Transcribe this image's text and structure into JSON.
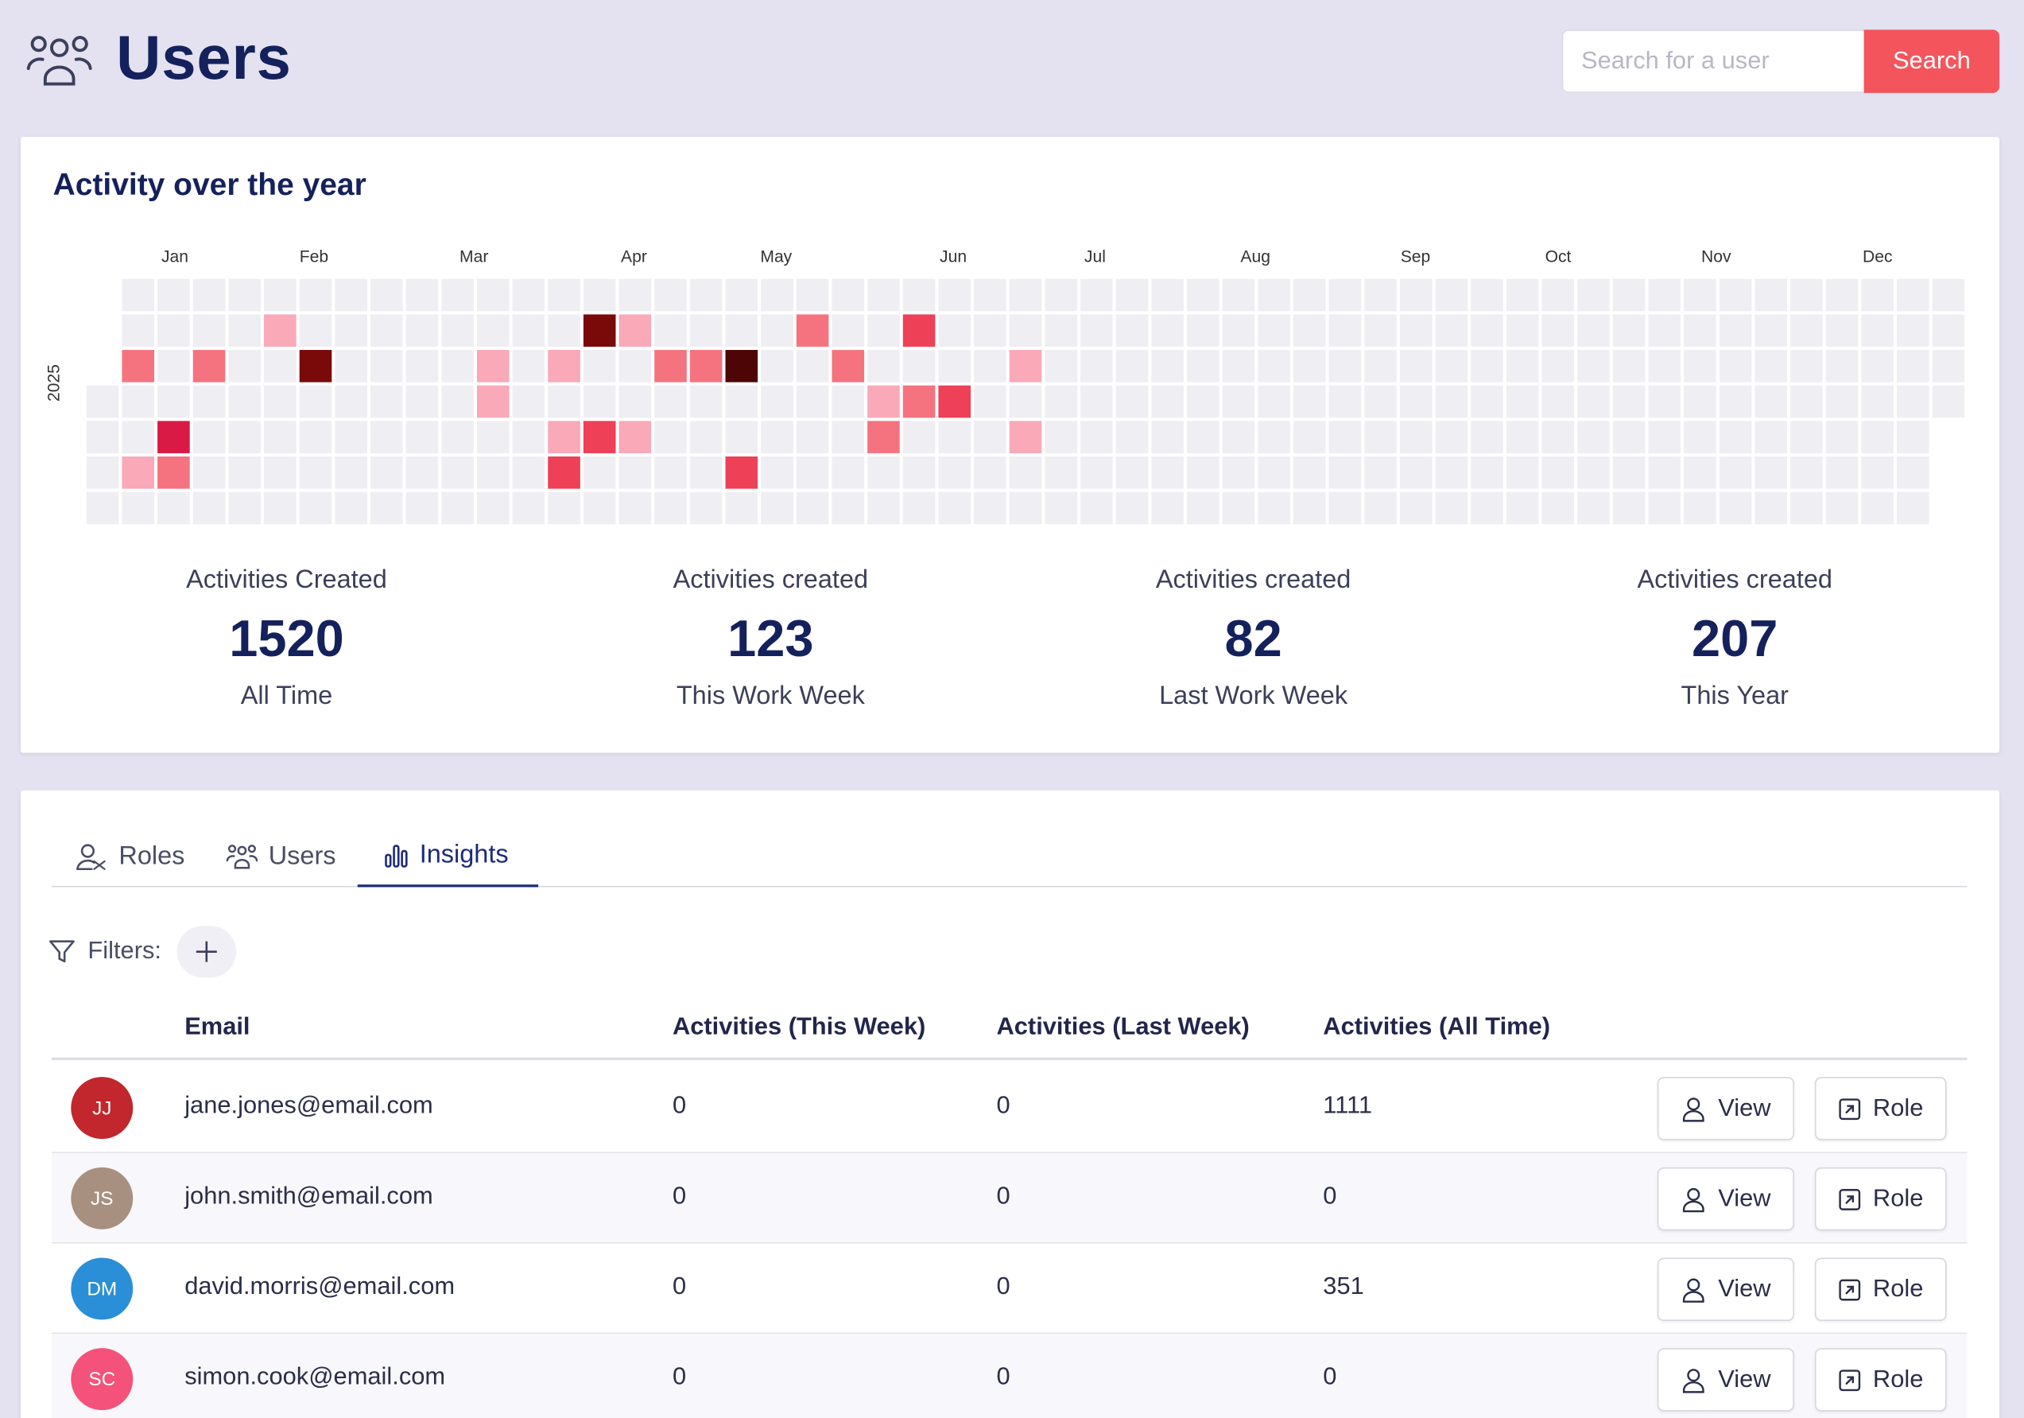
{
  "header": {
    "title": "Users",
    "icon": "users-group-icon",
    "search_placeholder": "Search for a user",
    "search_button": "Search"
  },
  "activity": {
    "title": "Activity over the year",
    "chart_data": {
      "type": "heatmap",
      "title": "Activity over the year",
      "year": "2025",
      "months": [
        "Jan",
        "Feb",
        "Mar",
        "Apr",
        "May",
        "Jun",
        "Jul",
        "Aug",
        "Sep",
        "Oct",
        "Nov",
        "Dec"
      ],
      "rows_label": "day of week",
      "columns": 53,
      "highlighted_cells": [
        {
          "week": 5,
          "day": 1,
          "level": 1
        },
        {
          "week": 14,
          "day": 1,
          "level": 5
        },
        {
          "week": 15,
          "day": 1,
          "level": 1
        },
        {
          "week": 20,
          "day": 1,
          "level": 2
        },
        {
          "week": 23,
          "day": 1,
          "level": 3
        },
        {
          "week": 1,
          "day": 2,
          "level": 2
        },
        {
          "week": 3,
          "day": 2,
          "level": 2
        },
        {
          "week": 6,
          "day": 2,
          "level": 5
        },
        {
          "week": 11,
          "day": 2,
          "level": 1
        },
        {
          "week": 13,
          "day": 2,
          "level": 1
        },
        {
          "week": 16,
          "day": 2,
          "level": 2
        },
        {
          "week": 17,
          "day": 2,
          "level": 2
        },
        {
          "week": 18,
          "day": 2,
          "level": 6
        },
        {
          "week": 21,
          "day": 2,
          "level": 2
        },
        {
          "week": 26,
          "day": 2,
          "level": 1
        },
        {
          "week": 11,
          "day": 3,
          "level": 1
        },
        {
          "week": 22,
          "day": 3,
          "level": 1
        },
        {
          "week": 23,
          "day": 3,
          "level": 2
        },
        {
          "week": 24,
          "day": 3,
          "level": 3
        },
        {
          "week": 2,
          "day": 4,
          "level": 4
        },
        {
          "week": 13,
          "day": 4,
          "level": 1
        },
        {
          "week": 14,
          "day": 4,
          "level": 3
        },
        {
          "week": 15,
          "day": 4,
          "level": 1
        },
        {
          "week": 22,
          "day": 4,
          "level": 2
        },
        {
          "week": 26,
          "day": 4,
          "level": 1
        },
        {
          "week": 1,
          "day": 5,
          "level": 1
        },
        {
          "week": 2,
          "day": 5,
          "level": 2
        },
        {
          "week": 13,
          "day": 5,
          "level": 3
        },
        {
          "week": 18,
          "day": 5,
          "level": 3
        }
      ],
      "colors": {
        "empty": "#efeef2",
        "level1": "#f9a9b8",
        "level2": "#f5737f",
        "level3": "#ee4056",
        "level4": "#d91a44",
        "level5": "#7a0a0a",
        "level6": "#4d0505"
      }
    },
    "stats": [
      {
        "label": "Activities Created",
        "value": "1520",
        "period": "All Time"
      },
      {
        "label": "Activities created",
        "value": "123",
        "period": "This Work Week"
      },
      {
        "label": "Activities created",
        "value": "82",
        "period": "Last Work Week"
      },
      {
        "label": "Activities created",
        "value": "207",
        "period": "This Year"
      }
    ]
  },
  "tabs": [
    {
      "label": "Roles",
      "icon": "user-role-icon"
    },
    {
      "label": "Users",
      "icon": "users-group-icon"
    },
    {
      "label": "Insights",
      "icon": "bar-chart-icon",
      "active": true
    }
  ],
  "filters": {
    "label": "Filters:",
    "icon": "filter-icon",
    "add_icon": "plus-icon"
  },
  "table": {
    "columns": [
      "Email",
      "Activities (This Week)",
      "Activities (Last Week)",
      "Activities (All Time)"
    ],
    "view_label": "View",
    "role_label": "Role",
    "rows": [
      {
        "initials": "JJ",
        "color": "#c1272d",
        "email": "jane.jones@email.com",
        "this_week": "0",
        "last_week": "0",
        "all_time": "1111"
      },
      {
        "initials": "JS",
        "color": "#a89080",
        "email": "john.smith@email.com",
        "this_week": "0",
        "last_week": "0",
        "all_time": "0"
      },
      {
        "initials": "DM",
        "color": "#2a8fd6",
        "email": "david.morris@email.com",
        "this_week": "0",
        "last_week": "0",
        "all_time": "351"
      },
      {
        "initials": "SC",
        "color": "#f4527a",
        "email": "simon.cook@email.com",
        "this_week": "0",
        "last_week": "0",
        "all_time": "0"
      }
    ]
  }
}
